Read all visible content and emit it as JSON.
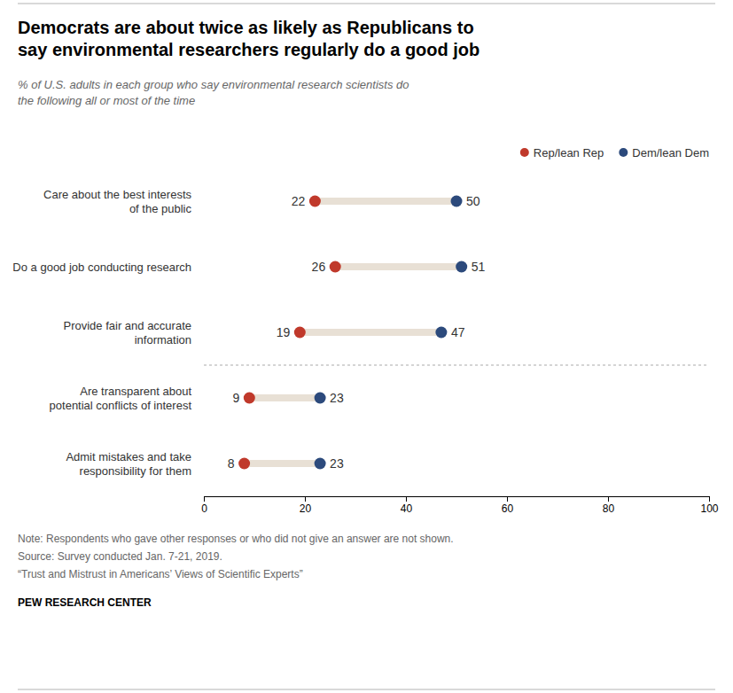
{
  "chart_data": {
    "type": "dumbbell",
    "title": "Democrats are about twice as likely as Republicans to\nsay environmental researchers regularly do a good job",
    "subtitle": "% of U.S. adults in each group who say environmental research scientists do\nthe following all or most of the time",
    "categories": [
      "Care about the best interests\nof the public",
      "Do a good job conducting research",
      "Provide fair and accurate\ninformation",
      "Are transparent about\npotential conflicts of interest",
      "Admit mistakes and take\nresponsibility for them"
    ],
    "series": [
      {
        "name": "Rep/lean Rep",
        "color": "#C0392B",
        "values": [
          22,
          26,
          19,
          9,
          8
        ]
      },
      {
        "name": "Dem/lean Dem",
        "color": "#2C4A7C",
        "values": [
          50,
          51,
          47,
          23,
          23
        ]
      }
    ],
    "color": "#E8E0D5",
    "xlim": [
      0,
      100
    ],
    "xticks": [
      0,
      20,
      40,
      60,
      80,
      100
    ],
    "grid": false,
    "legend": "upper right",
    "data_labels": true,
    "annotations": [
      "Note: Respondents who gave other responses or who did not give an answer are not shown.",
      "Source: Survey conducted Jan. 7-21, 2019.",
      "“Trust and Mistrust in Americans’ Views of Scientific Experts”",
      "PEW RESEARCH CENTER"
    ]
  }
}
